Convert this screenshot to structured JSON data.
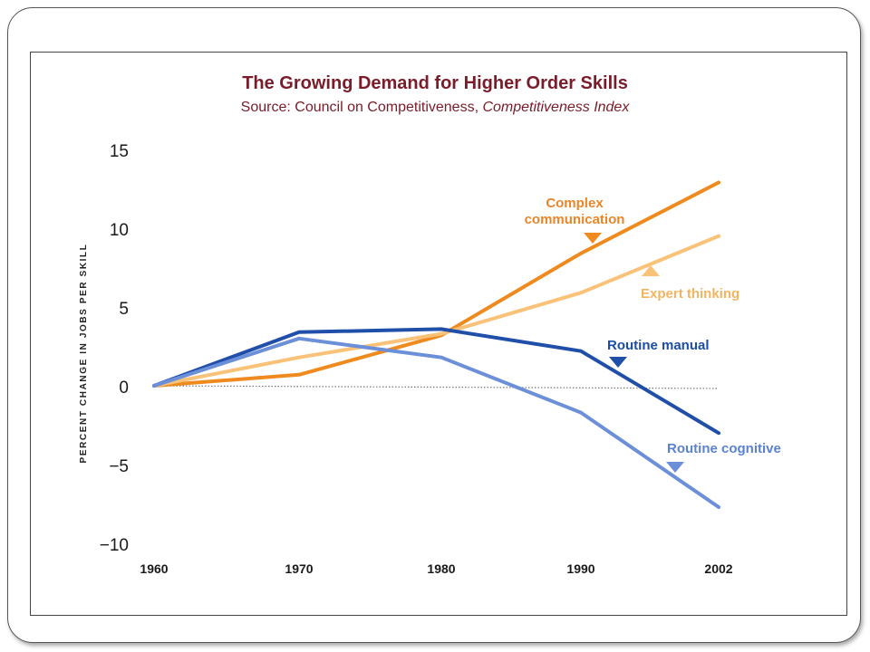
{
  "slide": {
    "title": "The Growing Demand for Higher Order Skills",
    "source_prefix": "Source: Council on Competitiveness, ",
    "source_italic": "Competitiveness Index"
  },
  "chart_data": {
    "type": "line",
    "title": "The Growing Demand for Higher Order Skills",
    "subtitle": "Source: Council on Competitiveness, Competitiveness Index",
    "xlabel": "",
    "ylabel": "PERCENT CHANGE IN JOBS PER SKILL",
    "x": [
      "1960",
      "1970",
      "1980",
      "1990",
      "2002"
    ],
    "x_values": [
      1960,
      1970,
      1980,
      1990,
      2002
    ],
    "ylim": [
      -10,
      15
    ],
    "yticks": [
      15,
      10,
      5,
      0,
      -5,
      -10
    ],
    "ytick_labels": [
      "15",
      "10",
      "5",
      "0",
      "−5",
      "−10"
    ],
    "grid": false,
    "reference_line": 0,
    "series": [
      {
        "name": "Complex communication",
        "label_lines": [
          "Complex",
          "communication"
        ],
        "values": [
          0,
          0.7,
          3.2,
          8.4,
          12.9
        ],
        "color": "#ef8a1f",
        "label_color": "#e8862a",
        "marker": "down"
      },
      {
        "name": "Expert thinking",
        "label_lines": [
          "Expert thinking"
        ],
        "values": [
          0,
          1.8,
          3.3,
          5.9,
          9.5
        ],
        "color": "#f9c278",
        "label_color": "#f3b461",
        "marker": "up"
      },
      {
        "name": "Routine manual",
        "label_lines": [
          "Routine manual"
        ],
        "values": [
          0,
          3.4,
          3.6,
          2.2,
          -3.0
        ],
        "color": "#1f4fa8",
        "label_color": "#1d4ea3",
        "marker": "down"
      },
      {
        "name": "Routine cognitive",
        "label_lines": [
          "Routine cognitive"
        ],
        "values": [
          0,
          3.0,
          1.8,
          -1.7,
          -7.7
        ],
        "color": "#6b8fd8",
        "label_color": "#5b82cf",
        "marker": "down"
      }
    ]
  }
}
